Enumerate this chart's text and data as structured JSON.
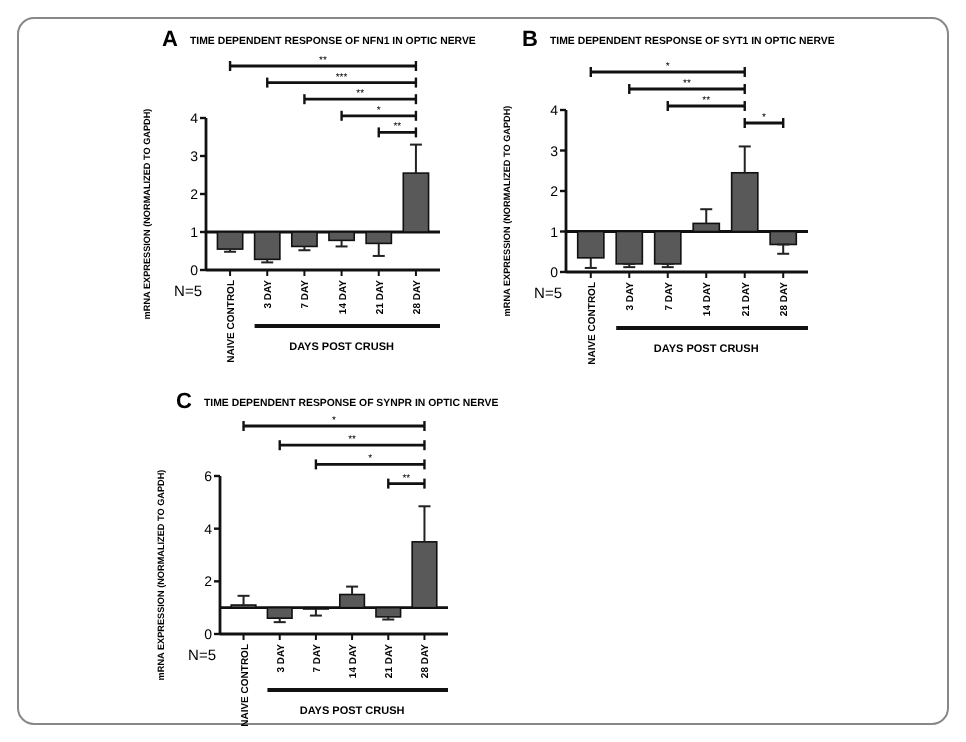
{
  "chart_data": [
    {
      "type": "bar",
      "title": "TIME DEPENDENT RESPONSE OF NFN1 IN OPTIC NERVE",
      "xlabel": "DAYS POST CRUSH",
      "ylabel": "mRNA EXPRESSION (NORMALIZED TO GAPDH)",
      "categories": [
        "NAIVE CONTROL",
        "3 DAY",
        "7 DAY",
        "14 DAY",
        "21 DAY",
        "28 DAY"
      ],
      "base": [
        1,
        1,
        1,
        1,
        1,
        1
      ],
      "values": [
        -0.45,
        -0.72,
        -0.38,
        -0.22,
        -0.3,
        1.55
      ],
      "color": "#595959",
      "errors": [
        [
          0.48,
          0.55
        ],
        [
          0.2,
          0.28
        ],
        [
          0.52,
          0.62
        ],
        [
          0.62,
          0.78
        ],
        [
          0.37,
          0.7
        ],
        [
          2.55,
          3.3
        ]
      ],
      "ylim": [
        0,
        4
      ],
      "yticks": [
        0,
        1,
        2,
        3,
        4
      ],
      "ref_lines": [
        {
          "axis": "y",
          "value": 1
        }
      ],
      "annotations": [
        "A",
        "**",
        "***",
        "**",
        "*",
        "**",
        "N=5"
      ]
    },
    {
      "type": "bar",
      "title": "TIME DEPENDENT RESPONSE OF SYT1 IN OPTIC NERVE",
      "xlabel": "DAYS POST CRUSH",
      "ylabel": "mRNA EXPRESSION (NORMALIZED TO GAPDH)",
      "categories": [
        "NAIVE CONTROL",
        "3 DAY",
        "7 DAY",
        "14 DAY",
        "21 DAY",
        "28 DAY"
      ],
      "base": [
        1,
        1,
        1,
        1,
        1,
        1
      ],
      "values": [
        -0.65,
        -0.8,
        -0.8,
        0.2,
        1.45,
        -0.32
      ],
      "color": "#595959",
      "errors": [
        [
          0.1,
          0.35
        ],
        [
          0.12,
          0.2
        ],
        [
          0.12,
          0.2
        ],
        [
          1.2,
          1.55
        ],
        [
          2.45,
          3.1
        ],
        [
          0.45,
          0.68
        ]
      ],
      "ylim": [
        0,
        4
      ],
      "yticks": [
        0,
        1,
        2,
        3,
        4
      ],
      "ref_lines": [
        {
          "axis": "y",
          "value": 1
        }
      ],
      "annotations": [
        "B",
        "*",
        "**",
        "**",
        "*",
        "N=5"
      ]
    },
    {
      "type": "bar",
      "title": "TIME DEPENDENT RESPONSE OF SYNPR IN OPTIC NERVE",
      "xlabel": "DAYS POST CRUSH",
      "ylabel": "mRNA EXPRESSION (NORMALIZED TO GAPDH)",
      "categories": [
        "NAIVE CONTROL",
        "3 DAY",
        "7 DAY",
        "14 DAY",
        "21 DAY",
        "28 DAY"
      ],
      "base": [
        1,
        1,
        1,
        1,
        1,
        1
      ],
      "values": [
        0.1,
        -0.4,
        -0.05,
        0.5,
        -0.35,
        2.5
      ],
      "color": "#595959",
      "errors": [
        [
          1.1,
          1.45
        ],
        [
          0.45,
          0.6
        ],
        [
          0.7,
          0.95
        ],
        [
          1.5,
          1.8
        ],
        [
          0.55,
          0.65
        ],
        [
          3.5,
          4.85
        ]
      ],
      "ylim": [
        0,
        6
      ],
      "yticks": [
        0,
        2,
        4,
        6
      ],
      "ref_lines": [
        {
          "axis": "y",
          "value": 1
        }
      ],
      "annotations": [
        "C",
        "*",
        "**",
        "*",
        "**",
        "N=5"
      ]
    }
  ]
}
